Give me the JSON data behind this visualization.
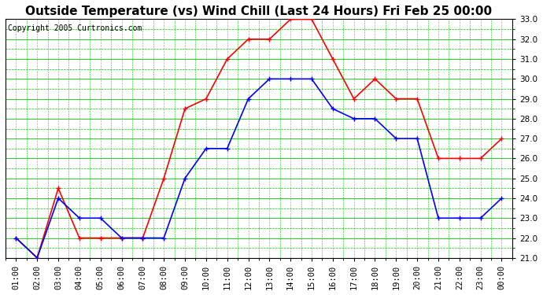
{
  "title": "Outside Temperature (vs) Wind Chill (Last 24 Hours) Fri Feb 25 00:00",
  "copyright": "Copyright 2005 Curtronics.com",
  "x_labels": [
    "01:00",
    "02:00",
    "03:00",
    "04:00",
    "05:00",
    "06:00",
    "07:00",
    "08:00",
    "09:00",
    "10:00",
    "11:00",
    "12:00",
    "13:00",
    "14:00",
    "15:00",
    "16:00",
    "17:00",
    "18:00",
    "19:00",
    "20:00",
    "21:00",
    "22:00",
    "23:00",
    "00:00"
  ],
  "outside_temp": [
    22.0,
    21.0,
    24.0,
    23.0,
    23.0,
    22.0,
    22.0,
    22.0,
    25.0,
    26.5,
    26.5,
    29.0,
    30.0,
    30.0,
    30.0,
    28.5,
    28.0,
    28.0,
    27.0,
    27.0,
    23.0,
    23.0,
    23.0,
    24.0
  ],
  "wind_chill": [
    22.0,
    21.0,
    24.5,
    22.0,
    22.0,
    22.0,
    22.0,
    25.0,
    28.5,
    29.0,
    31.0,
    32.0,
    32.0,
    33.0,
    33.0,
    31.0,
    29.0,
    30.0,
    29.0,
    29.0,
    26.0,
    26.0,
    26.0,
    27.0
  ],
  "temp_color": "#0000ff",
  "windchill_color": "#ff0000",
  "bg_color": "#ffffff",
  "plot_bg_color": "#ffffff",
  "grid_major_color": "#00cc00",
  "grid_minor_color": "#00cc00",
  "ylim": [
    21.0,
    33.0
  ],
  "yticks": [
    21.0,
    22.0,
    23.0,
    24.0,
    25.0,
    26.0,
    27.0,
    28.0,
    29.0,
    30.0,
    31.0,
    32.0,
    33.0
  ],
  "title_fontsize": 11,
  "tick_fontsize": 7.5,
  "copyright_fontsize": 7,
  "marker": "+",
  "marker_size": 5,
  "line_width": 1.2
}
